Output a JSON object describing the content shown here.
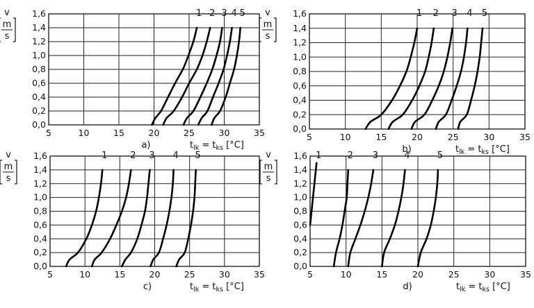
{
  "chart_data": [
    {
      "type": "line",
      "panel_label": "a)",
      "ylabel": "v",
      "yunit": "m/s",
      "xlabel": "t_lk = t_ks [°C]",
      "xlim": [
        5,
        35
      ],
      "ylim": [
        0,
        1.6
      ],
      "xticks": [
        "5",
        "10",
        "15",
        "20",
        "25",
        "30",
        "35"
      ],
      "yticks": [
        "0,0",
        "0,2",
        "0,4",
        "0,6",
        "0,8",
        "1,0",
        "1,2",
        "1,4",
        "1,6"
      ],
      "grid": true,
      "series": [
        {
          "name": "1",
          "x": [
            19.7,
            20.2,
            21.0,
            22.0,
            23.0,
            24.1,
            24.9,
            25.6,
            26.1
          ],
          "y": [
            0.0,
            0.1,
            0.2,
            0.4,
            0.6,
            0.8,
            1.0,
            1.2,
            1.4
          ]
        },
        {
          "name": "2",
          "x": [
            21.3,
            21.8,
            22.8,
            24.0,
            25.0,
            26.1,
            26.9,
            27.5,
            28.0
          ],
          "y": [
            0.0,
            0.1,
            0.2,
            0.4,
            0.6,
            0.8,
            1.0,
            1.2,
            1.4
          ]
        },
        {
          "name": "3",
          "x": [
            24.2,
            24.7,
            25.6,
            26.6,
            27.5,
            28.3,
            28.9,
            29.4,
            29.7
          ],
          "y": [
            0.0,
            0.1,
            0.2,
            0.4,
            0.6,
            0.8,
            1.0,
            1.2,
            1.4
          ]
        },
        {
          "name": "4",
          "x": [
            26.3,
            26.8,
            27.6,
            28.4,
            29.2,
            29.9,
            30.4,
            30.8,
            31.1
          ],
          "y": [
            0.0,
            0.1,
            0.2,
            0.4,
            0.6,
            0.8,
            1.0,
            1.2,
            1.4
          ]
        },
        {
          "name": "5",
          "x": [
            28.2,
            28.6,
            29.4,
            30.2,
            30.8,
            31.4,
            31.8,
            32.1,
            32.3
          ],
          "y": [
            0.0,
            0.1,
            0.2,
            0.4,
            0.6,
            0.8,
            1.0,
            1.2,
            1.4
          ]
        }
      ]
    },
    {
      "type": "line",
      "panel_label": "b)",
      "ylabel": "v",
      "yunit": "m/s",
      "xlabel": "t_lk = t_ks [°C]",
      "xlim": [
        5,
        35
      ],
      "ylim": [
        0,
        1.6
      ],
      "xticks": [
        "5",
        "10",
        "15",
        "20",
        "25",
        "30",
        "35"
      ],
      "yticks": [
        "0,0",
        "0,2",
        "0,4",
        "0,6",
        "0,8",
        "1,0",
        "1,2",
        "1,4",
        "1,6"
      ],
      "grid": true,
      "series": [
        {
          "name": "1",
          "x": [
            12.8,
            13.5,
            15.0,
            16.5,
            17.6,
            18.5,
            19.1,
            19.6,
            20.0
          ],
          "y": [
            0.0,
            0.1,
            0.2,
            0.4,
            0.6,
            0.8,
            1.0,
            1.2,
            1.4
          ]
        },
        {
          "name": "2",
          "x": [
            16.0,
            16.6,
            18.0,
            19.3,
            20.3,
            21.1,
            21.6,
            22.0,
            22.3
          ],
          "y": [
            0.0,
            0.1,
            0.2,
            0.4,
            0.6,
            0.8,
            1.0,
            1.2,
            1.4
          ]
        },
        {
          "name": "3",
          "x": [
            19.2,
            19.7,
            21.0,
            22.1,
            23.0,
            23.7,
            24.2,
            24.6,
            24.9
          ],
          "y": [
            0.0,
            0.1,
            0.2,
            0.4,
            0.6,
            0.8,
            1.0,
            1.2,
            1.4
          ]
        },
        {
          "name": "4",
          "x": [
            22.6,
            23.0,
            24.0,
            24.8,
            25.5,
            26.1,
            26.5,
            26.8,
            27.0
          ],
          "y": [
            0.0,
            0.1,
            0.2,
            0.4,
            0.6,
            0.8,
            1.0,
            1.2,
            1.4
          ]
        },
        {
          "name": "5",
          "x": [
            25.7,
            26.0,
            26.9,
            27.5,
            28.0,
            28.4,
            28.7,
            28.9,
            29.1
          ],
          "y": [
            0.0,
            0.1,
            0.2,
            0.4,
            0.6,
            0.8,
            1.0,
            1.2,
            1.4
          ]
        }
      ]
    },
    {
      "type": "line",
      "panel_label": "c)",
      "ylabel": "v",
      "yunit": "m/s",
      "xlabel": "t_lk = t_ks [°C]",
      "xlim": [
        5,
        35
      ],
      "ylim": [
        0,
        1.6
      ],
      "xticks": [
        "5",
        "10",
        "15",
        "20",
        "25",
        "30",
        "35"
      ],
      "yticks": [
        "0,0",
        "0,2",
        "0,4",
        "0,6",
        "0,8",
        "1,0",
        "1,2",
        "1,4",
        "1,6"
      ],
      "grid": true,
      "series": [
        {
          "name": "1",
          "x": [
            7.3,
            7.8,
            9.0,
            10.2,
            11.0,
            11.6,
            12.0,
            12.3,
            12.5
          ],
          "y": [
            0.0,
            0.1,
            0.2,
            0.4,
            0.6,
            0.8,
            1.0,
            1.2,
            1.4
          ]
        },
        {
          "name": "2",
          "x": [
            11.0,
            11.4,
            12.4,
            13.6,
            14.5,
            15.3,
            15.9,
            16.3,
            16.6
          ],
          "y": [
            0.0,
            0.1,
            0.2,
            0.4,
            0.6,
            0.8,
            1.0,
            1.2,
            1.4
          ]
        },
        {
          "name": "3",
          "x": [
            15.3,
            15.8,
            16.6,
            17.5,
            18.1,
            18.6,
            18.9,
            19.1,
            19.3
          ],
          "y": [
            0.0,
            0.1,
            0.2,
            0.4,
            0.6,
            0.8,
            1.0,
            1.2,
            1.4
          ]
        },
        {
          "name": "4",
          "x": [
            19.4,
            19.8,
            20.6,
            21.2,
            21.7,
            22.1,
            22.4,
            22.6,
            22.7
          ],
          "y": [
            0.0,
            0.1,
            0.2,
            0.4,
            0.6,
            0.8,
            1.0,
            1.2,
            1.4
          ]
        },
        {
          "name": "5",
          "x": [
            23.1,
            23.5,
            24.3,
            24.8,
            25.2,
            25.5,
            25.7,
            25.8,
            25.9
          ],
          "y": [
            0.0,
            0.1,
            0.2,
            0.4,
            0.6,
            0.8,
            1.0,
            1.2,
            1.4
          ]
        }
      ]
    },
    {
      "type": "line",
      "panel_label": "d)",
      "ylabel": "v",
      "yunit": "m/s",
      "xlabel": "t_lk = t_ks [°C]",
      "xlim": [
        5,
        35
      ],
      "ylim": [
        0,
        1.6
      ],
      "xticks": [
        "5",
        "10",
        "15",
        "20",
        "25",
        "30",
        "35"
      ],
      "yticks": [
        "0,0",
        "0,2",
        "0,4",
        "0,6",
        "0,8",
        "1,0",
        "1,2",
        "1,4",
        "1,6"
      ],
      "grid": true,
      "series": [
        {
          "name": "1",
          "x": [
            5.0,
            5.3,
            5.6,
            5.9
          ],
          "y": [
            0.6,
            0.9,
            1.2,
            1.5
          ]
        },
        {
          "name": "2",
          "x": [
            8.3,
            8.6,
            9.1,
            9.5,
            9.8,
            10.1,
            10.2,
            10.3
          ],
          "y": [
            0.0,
            0.2,
            0.4,
            0.6,
            0.8,
            1.0,
            1.2,
            1.4
          ]
        },
        {
          "name": "3",
          "x": [
            10.3,
            10.6,
            11.3,
            12.0,
            12.6,
            13.1,
            13.5,
            13.8
          ],
          "y": [
            0.0,
            0.2,
            0.4,
            0.6,
            0.8,
            1.0,
            1.2,
            1.4
          ]
        },
        {
          "name": "4",
          "x": [
            15.0,
            15.3,
            16.1,
            16.8,
            17.3,
            17.7,
            18.0,
            18.2
          ],
          "y": [
            0.0,
            0.2,
            0.4,
            0.6,
            0.8,
            1.0,
            1.2,
            1.4
          ]
        },
        {
          "name": "5",
          "x": [
            20.0,
            20.4,
            21.2,
            21.8,
            22.2,
            22.5,
            22.7,
            22.8
          ],
          "y": [
            0.0,
            0.2,
            0.4,
            0.6,
            0.8,
            1.0,
            1.2,
            1.4
          ]
        }
      ]
    }
  ]
}
